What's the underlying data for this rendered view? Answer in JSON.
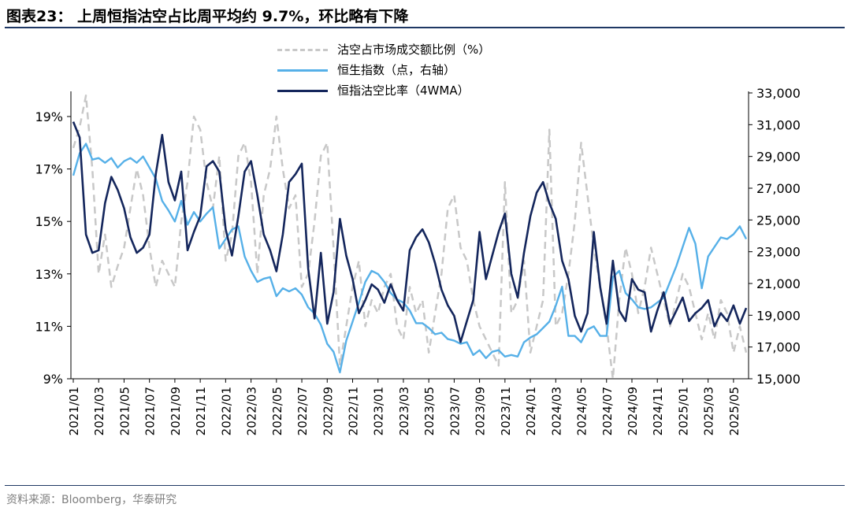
{
  "title": "图表23：  上周恒指沽空占比周平均约 9.7%，环比略有下降",
  "source": "资料来源：Bloomberg，华泰研究",
  "colors": {
    "short_ratio": "#c8c8c8",
    "hsi": "#56b0e8",
    "short_ratio_4wma": "#14265c",
    "rule": "#1f3864"
  },
  "chart_data": {
    "type": "line",
    "title": "上周恒指沽空占比周平均约 9.7%，环比略有下降",
    "grid": false,
    "legend_position": "top-center",
    "y_left": {
      "unit": "%",
      "ylim": [
        9,
        19.9
      ],
      "ticks": [
        9,
        11,
        13,
        15,
        17,
        19
      ],
      "tick_labels": [
        "9%",
        "11%",
        "13%",
        "15%",
        "17%",
        "19%"
      ]
    },
    "y_right": {
      "ylim": [
        15000,
        33000
      ],
      "ticks": [
        15000,
        17000,
        19000,
        21000,
        23000,
        25000,
        27000,
        29000,
        31000,
        33000
      ],
      "tick_labels": [
        "15,000",
        "17,000",
        "19,000",
        "21,000",
        "23,000",
        "25,000",
        "27,000",
        "29,000",
        "31,000",
        "33,000"
      ]
    },
    "x_labels": [
      "2021/01",
      "2021/03",
      "2021/05",
      "2021/07",
      "2021/09",
      "2021/11",
      "2022/01",
      "2022/03",
      "2022/05",
      "2022/07",
      "2022/09",
      "2022/11",
      "2023/01",
      "2023/03",
      "2023/05",
      "2023/07",
      "2023/09",
      "2023/11",
      "2024/01",
      "2024/03",
      "2024/05",
      "2024/07",
      "2024/09",
      "2024/11",
      "2025/01",
      "2025/03",
      "2025/05"
    ],
    "series": [
      {
        "name": "沽空占市场成交额比例（%）",
        "axis": "left",
        "style": "dashed",
        "x": [
          0,
          0.5,
          1,
          1.5,
          2,
          2.5,
          3,
          3.5,
          4,
          4.5,
          5,
          5.5,
          6,
          6.5,
          7,
          7.5,
          8,
          8.5,
          9,
          9.5,
          10,
          10.5,
          11,
          11.5,
          12,
          12.5,
          13,
          13.5,
          14,
          14.5,
          15,
          15.5,
          16,
          16.5,
          17,
          17.5,
          18,
          18.5,
          19,
          19.5,
          20,
          20.5,
          21,
          21.5,
          22,
          22.5,
          23,
          23.5,
          24,
          24.5,
          25,
          25.5,
          26,
          26.5,
          27,
          27.5,
          28,
          28.5,
          29,
          29.5,
          30,
          30.5,
          31,
          31.5,
          32,
          32.5,
          33,
          33.5,
          34,
          34.5,
          35,
          35.5,
          36,
          36.5,
          37,
          37.5,
          38,
          38.5,
          39,
          39.5,
          40,
          40.5,
          41,
          41.5,
          42,
          42.5,
          43,
          43.5,
          44,
          44.5,
          45,
          45.5,
          46,
          46.5,
          47,
          47.5,
          48,
          48.5,
          49,
          49.5,
          50,
          50.5,
          51,
          51.5,
          52,
          52.5,
          53
        ],
        "values": [
          17.8,
          18.6,
          19.8,
          17.0,
          13.0,
          14.5,
          12.5,
          13.3,
          14.0,
          15.5,
          17.0,
          16.0,
          14.0,
          12.5,
          13.5,
          13.0,
          12.5,
          15.0,
          16.5,
          19.0,
          18.5,
          16.5,
          15.5,
          17.5,
          13.5,
          14.5,
          17.5,
          18.0,
          16.5,
          13.0,
          16.0,
          17.0,
          19.0,
          17.0,
          15.5,
          16.0,
          12.5,
          13.0,
          15.0,
          17.5,
          18.0,
          14.0,
          9.5,
          11.0,
          12.5,
          13.5,
          11.0,
          12.0,
          11.5,
          12.5,
          13.0,
          11.0,
          10.5,
          12.5,
          11.5,
          12.0,
          10.0,
          11.5,
          13.0,
          15.5,
          16.0,
          14.0,
          13.5,
          12.0,
          11.0,
          10.5,
          10.0,
          9.5,
          16.5,
          11.5,
          12.0,
          13.5,
          10.0,
          11.0,
          12.0,
          18.5,
          11.0,
          11.5,
          13.0,
          15.0,
          18.0,
          16.0,
          14.0,
          12.5,
          11.0,
          9.0,
          12.0,
          14.0,
          13.0,
          11.5,
          12.5,
          14.0,
          13.0,
          12.0,
          11.0,
          12.0,
          13.0,
          12.5,
          11.5,
          10.5,
          11.5,
          10.5,
          12.0,
          11.5,
          10.0,
          11.0,
          10.0
        ]
      },
      {
        "name": "恒生指数（点，右轴）",
        "axis": "right",
        "style": "solid",
        "x": [
          0,
          0.5,
          1,
          1.5,
          2,
          2.5,
          3,
          3.5,
          4,
          4.5,
          5,
          5.5,
          6,
          6.5,
          7,
          7.5,
          8,
          8.5,
          9,
          9.5,
          10,
          10.5,
          11,
          11.5,
          12,
          12.5,
          13,
          13.5,
          14,
          14.5,
          15,
          15.5,
          16,
          16.5,
          17,
          17.5,
          18,
          18.5,
          19,
          19.5,
          20,
          20.5,
          21,
          21.5,
          22,
          22.5,
          23,
          23.5,
          24,
          24.5,
          25,
          25.5,
          26,
          26.5,
          27,
          27.5,
          28,
          28.5,
          29,
          29.5,
          30,
          30.5,
          31,
          31.5,
          32,
          32.5,
          33,
          33.5,
          34,
          34.5,
          35,
          35.5,
          36,
          36.5,
          37,
          37.5,
          38,
          38.5,
          39,
          39.5,
          40,
          40.5,
          41,
          41.5,
          42,
          42.5,
          43,
          43.5,
          44,
          44.5,
          45,
          45.5,
          46,
          46.5,
          47,
          47.5,
          48,
          48.5,
          49,
          49.5,
          50,
          50.5,
          51,
          51.5,
          52,
          52.5,
          53
        ],
        "values": [
          27800,
          29200,
          29800,
          28800,
          28900,
          28600,
          28900,
          28300,
          28700,
          28900,
          28600,
          29000,
          28300,
          27600,
          26200,
          25600,
          24900,
          26200,
          24700,
          25500,
          24900,
          25400,
          25800,
          23200,
          23800,
          24400,
          24600,
          22700,
          21800,
          21100,
          21300,
          21400,
          20200,
          20700,
          20500,
          20700,
          20300,
          19500,
          19100,
          18400,
          17200,
          16700,
          15400,
          17400,
          18600,
          19800,
          21100,
          21800,
          21600,
          21100,
          20400,
          20000,
          19800,
          19300,
          18500,
          18500,
          18200,
          17800,
          17900,
          17500,
          17400,
          17200,
          17300,
          16500,
          16800,
          16300,
          16700,
          16800,
          16400,
          16500,
          16400,
          17300,
          17600,
          17800,
          18200,
          18600,
          19600,
          20800,
          17700,
          17700,
          17300,
          18100,
          18300,
          17700,
          17700,
          21400,
          21800,
          20400,
          20000,
          19500,
          19400,
          19500,
          19800,
          20100,
          21100,
          22100,
          23300,
          24500,
          23500,
          20700,
          22700,
          23300,
          23900,
          23800,
          24100,
          24600,
          23800
        ]
      },
      {
        "name": "恒指沽空比率（4WMA）",
        "axis": "right",
        "style": "solid",
        "x": [
          0,
          0.5,
          1,
          1.5,
          2,
          2.5,
          3,
          3.5,
          4,
          4.5,
          5,
          5.5,
          6,
          6.5,
          7,
          7.5,
          8,
          8.5,
          9,
          9.5,
          10,
          10.5,
          11,
          11.5,
          12,
          12.5,
          13,
          13.5,
          14,
          14.5,
          15,
          15.5,
          16,
          16.5,
          17,
          17.5,
          18,
          18.5,
          19,
          19.5,
          20,
          20.5,
          21,
          21.5,
          22,
          22.5,
          23,
          23.5,
          24,
          24.5,
          25,
          25.5,
          26,
          26.5,
          27,
          27.5,
          28,
          28.5,
          29,
          29.5,
          30,
          30.5,
          31,
          31.5,
          32,
          32.5,
          33,
          33.5,
          34,
          34.5,
          35,
          35.5,
          36,
          36.5,
          37,
          37.5,
          38,
          38.5,
          39,
          39.5,
          40,
          40.5,
          41,
          41.5,
          42,
          42.5,
          43,
          43.5,
          44,
          44.5,
          45,
          45.5,
          46,
          46.5,
          47,
          47.5,
          48,
          48.5,
          49,
          49.5,
          50,
          50.5,
          51,
          51.5,
          52,
          52.5,
          53
        ],
        "values": [
          18.8,
          18.2,
          14.5,
          13.8,
          13.9,
          15.7,
          16.7,
          16.2,
          15.5,
          14.4,
          13.8,
          14.0,
          14.5,
          16.8,
          18.3,
          16.5,
          15.8,
          16.9,
          13.9,
          14.6,
          15.2,
          17.1,
          17.3,
          16.9,
          14.7,
          13.7,
          15.2,
          16.9,
          17.3,
          16.0,
          14.5,
          13.9,
          13.1,
          14.5,
          16.5,
          16.8,
          17.2,
          13.2,
          11.3,
          13.8,
          11.1,
          12.3,
          15.1,
          13.7,
          12.8,
          11.5,
          12.0,
          12.6,
          12.4,
          11.9,
          12.6,
          12.0,
          11.6,
          13.9,
          14.4,
          14.7,
          14.2,
          13.4,
          12.4,
          11.8,
          11.4,
          10.4,
          11.2,
          12.0,
          14.6,
          12.8,
          13.7,
          14.6,
          15.3,
          13.0,
          12.1,
          13.8,
          15.2,
          16.1,
          16.5,
          15.7,
          15.1,
          13.5,
          12.8,
          11.4,
          10.8,
          11.5,
          14.6,
          12.5,
          11.1,
          13.5,
          11.6,
          11.2,
          12.8,
          12.4,
          12.3,
          10.8,
          11.6,
          12.3,
          11.1,
          11.6,
          12.1,
          11.2,
          11.5,
          11.7,
          12.0,
          11.0,
          11.5,
          11.2,
          11.8,
          11.1,
          11.7
        ]
      }
    ]
  }
}
